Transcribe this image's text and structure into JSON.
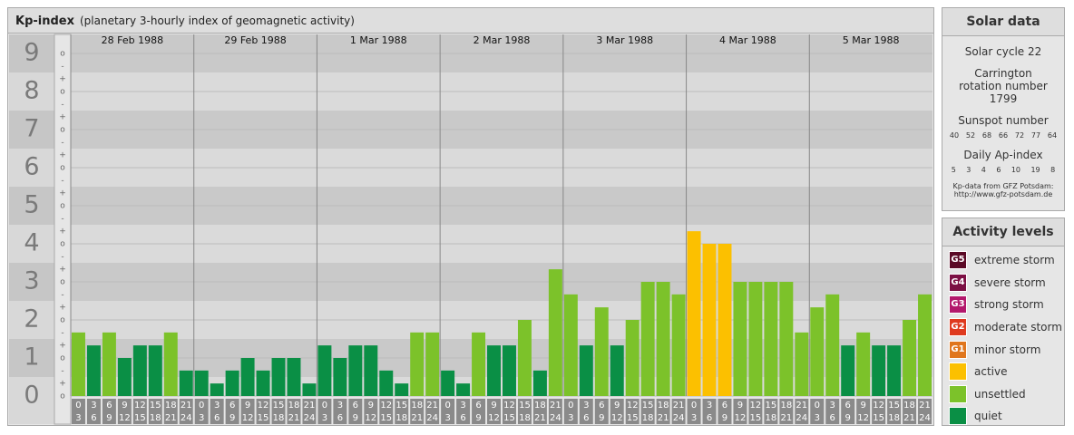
{
  "header": {
    "title": "Kp-index",
    "subtitle": "(planetary 3-hourly index of geomagnetic activity)"
  },
  "chart_data": {
    "type": "bar",
    "days": [
      "28 Feb 1988",
      "29 Feb 1988",
      "1 Mar 1988",
      "2 Mar 1988",
      "3 Mar 1988",
      "4 Mar 1988",
      "5 Mar 1988"
    ],
    "hour_labels": [
      "0",
      "3",
      "6",
      "9",
      "12",
      "15",
      "18",
      "21",
      "24"
    ],
    "values": [
      1.67,
      1.33,
      1.67,
      1,
      1.33,
      1.33,
      1.67,
      0.67,
      0.67,
      0.33,
      0.67,
      1,
      0.67,
      1,
      1,
      0.33,
      1.33,
      1,
      1.33,
      1.33,
      0.67,
      0.33,
      1.67,
      1.67,
      0.67,
      0.33,
      1.67,
      1.33,
      1.33,
      2,
      0.67,
      3.33,
      2.67,
      1.33,
      2.33,
      1.33,
      2,
      3,
      3,
      2.67,
      4.33,
      4,
      4,
      3,
      3,
      3,
      3,
      1.67,
      2.33,
      2.67,
      1.33,
      1.67,
      1.33,
      1.33,
      2,
      2.67
    ],
    "colors": [
      "#7cc22a",
      "#0a8f45",
      "#7cc22a",
      "#0a8f45",
      "#0a8f45",
      "#0a8f45",
      "#7cc22a",
      "#0a8f45",
      "#0a8f45",
      "#0a8f45",
      "#0a8f45",
      "#0a8f45",
      "#0a8f45",
      "#0a8f45",
      "#0a8f45",
      "#0a8f45",
      "#0a8f45",
      "#0a8f45",
      "#0a8f45",
      "#0a8f45",
      "#0a8f45",
      "#0a8f45",
      "#7cc22a",
      "#7cc22a",
      "#0a8f45",
      "#0a8f45",
      "#7cc22a",
      "#0a8f45",
      "#0a8f45",
      "#7cc22a",
      "#0a8f45",
      "#7cc22a",
      "#7cc22a",
      "#0a8f45",
      "#7cc22a",
      "#0a8f45",
      "#7cc22a",
      "#7cc22a",
      "#7cc22a",
      "#7cc22a",
      "#fcc000",
      "#fcc000",
      "#fcc000",
      "#7cc22a",
      "#7cc22a",
      "#7cc22a",
      "#7cc22a",
      "#7cc22a",
      "#7cc22a",
      "#7cc22a",
      "#0a8f45",
      "#7cc22a",
      "#0a8f45",
      "#0a8f45",
      "#7cc22a",
      "#7cc22a"
    ],
    "ylim": [
      0,
      9.5
    ],
    "yticks": [
      0,
      1,
      2,
      3,
      4,
      5,
      6,
      7,
      8,
      9
    ],
    "minor_ticks": [
      "-",
      "o",
      "+"
    ]
  },
  "solar_data": {
    "title": "Solar data",
    "solar_cycle": "Solar cycle 22",
    "carrington": "Carrington rotation number 1799",
    "sunspot_title": "Sunspot number",
    "sunspot": [
      40,
      52,
      68,
      66,
      72,
      77,
      64
    ],
    "ap_title": "Daily Ap-index",
    "ap": [
      5,
      3,
      4,
      6,
      10,
      19,
      8
    ],
    "source": "Kp-data from GFZ Potsdam:",
    "url": "http://www.gfz-potsdam.de"
  },
  "activity_levels": {
    "title": "Activity levels",
    "items": [
      {
        "badge": "G5",
        "label": "extreme storm",
        "color": "#5b0a26"
      },
      {
        "badge": "G4",
        "label": "severe storm",
        "color": "#7c1044"
      },
      {
        "badge": "G3",
        "label": "strong storm",
        "color": "#b3186c"
      },
      {
        "badge": "G2",
        "label": "moderate storm",
        "color": "#df3a1f"
      },
      {
        "badge": "G1",
        "label": "minor storm",
        "color": "#e0761d"
      },
      {
        "label": "active",
        "color": "#fcc000"
      },
      {
        "label": "unsettled",
        "color": "#7cc22a"
      },
      {
        "label": "quiet",
        "color": "#0a8f45"
      }
    ]
  }
}
